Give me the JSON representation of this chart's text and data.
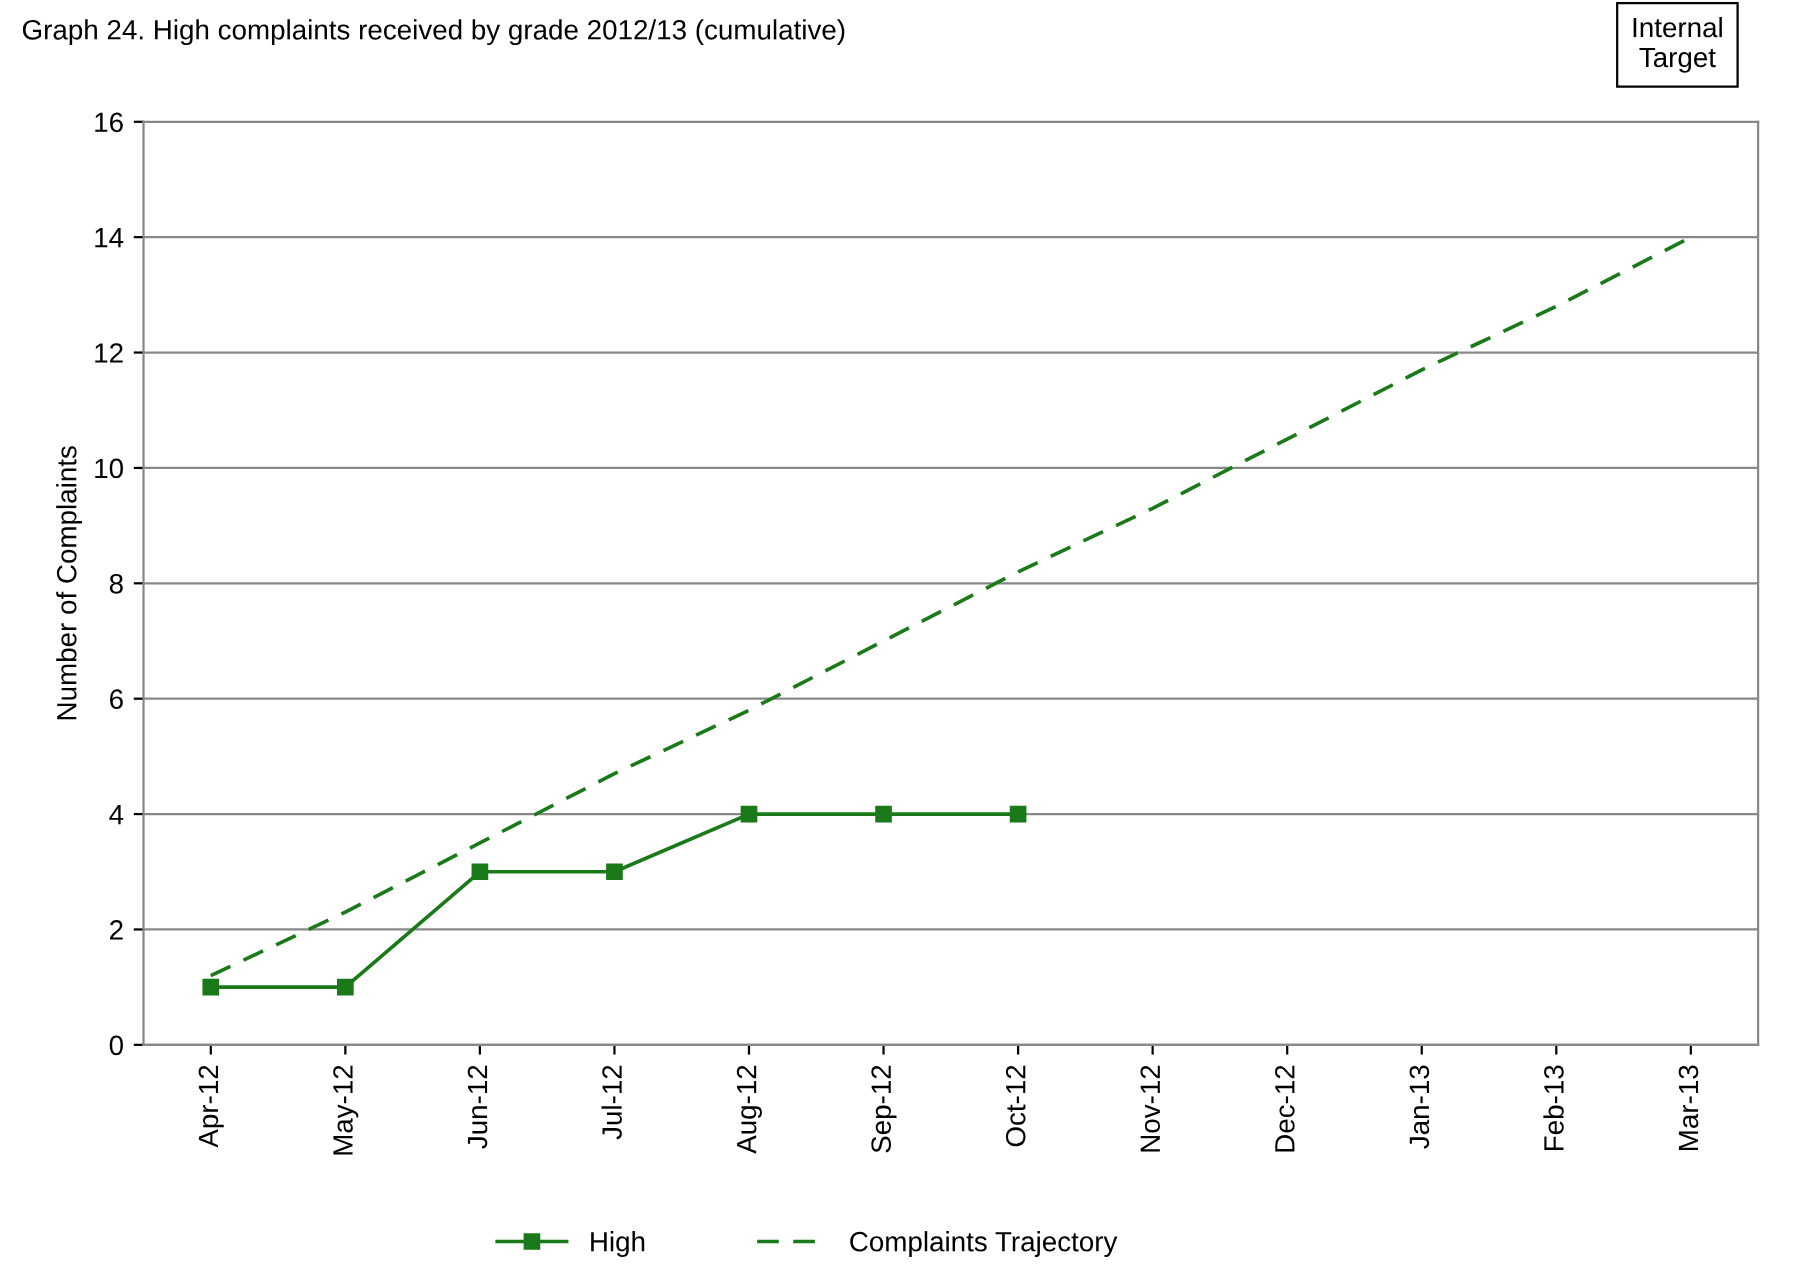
{
  "chart_data": {
    "type": "line",
    "title": "Graph 24. High complaints received by grade 2012/13 (cumulative)",
    "ylabel": "Number of Complaints",
    "annotations": [
      "Internal\nTarget"
    ],
    "categories": [
      "Apr-12",
      "May-12",
      "Jun-12",
      "Jul-12",
      "Aug-12",
      "Sep-12",
      "Oct-12",
      "Nov-12",
      "Dec-12",
      "Jan-13",
      "Feb-13",
      "Mar-13"
    ],
    "series": [
      {
        "name": "High",
        "color": "#1a7a1a",
        "marker": "square",
        "line_style": "solid",
        "values": [
          1,
          1,
          3,
          3,
          4,
          4,
          4,
          null,
          null,
          null,
          null,
          null
        ]
      },
      {
        "name": "Complaints Trajectory",
        "color": "#1a7a1a",
        "marker": "none",
        "line_style": "dashed",
        "values": [
          1.2,
          2.3,
          3.5,
          4.7,
          5.8,
          7,
          8.2,
          9.3,
          10.5,
          11.7,
          12.8,
          14
        ]
      }
    ],
    "ylim": [
      0,
      16
    ],
    "yticks": [
      0,
      2,
      4,
      6,
      8,
      10,
      12,
      14,
      16
    ],
    "grid": "y",
    "legend": "bottom"
  }
}
